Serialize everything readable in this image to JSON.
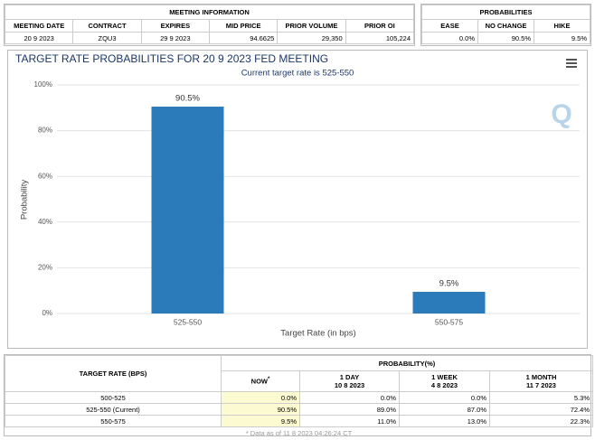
{
  "meeting_info": {
    "title": "MEETING INFORMATION",
    "headers": [
      "MEETING DATE",
      "CONTRACT",
      "EXPIRES",
      "MID PRICE",
      "PRIOR VOLUME",
      "PRIOR OI"
    ],
    "row": [
      "20 9 2023",
      "ZQU3",
      "29 9 2023",
      "94.6625",
      "29,350",
      "105,224"
    ]
  },
  "probabilities": {
    "title": "PROBABILITIES",
    "headers": [
      "EASE",
      "NO CHANGE",
      "HIKE"
    ],
    "row": [
      "0.0%",
      "90.5%",
      "9.5%"
    ]
  },
  "chart_data": {
    "type": "bar",
    "title": "TARGET RATE PROBABILITIES FOR 20 9 2023 FED MEETING",
    "subtitle": "Current target rate is 525-550",
    "x_label": "Target Rate (in bps)",
    "y_label": "Probability",
    "categories": [
      "525-550",
      "550-575"
    ],
    "values": [
      90.5,
      9.5
    ],
    "value_labels": [
      "90.5%",
      "9.5%"
    ],
    "color": "#2b7bba",
    "ylim": [
      0,
      100
    ],
    "yticks": [
      {
        "value": 0,
        "label": "0%"
      },
      {
        "value": 20,
        "label": "20%"
      },
      {
        "value": 40,
        "label": "40%"
      },
      {
        "value": 60,
        "label": "60%"
      },
      {
        "value": 80,
        "label": "80%"
      },
      {
        "value": 100,
        "label": "100%"
      }
    ],
    "grid": true
  },
  "rate_table": {
    "header": "TARGET RATE (BPS)",
    "group_header": "PROBABILITY(%)",
    "columns": [
      {
        "title": "NOW",
        "note": "*"
      },
      {
        "title": "1 DAY",
        "date": "10 8 2023"
      },
      {
        "title": "1 WEEK",
        "date": "4 8 2023"
      },
      {
        "title": "1 MONTH",
        "date": "11 7 2023"
      }
    ],
    "rows": [
      [
        "500-525",
        "0.0%",
        "0.0%",
        "0.0%",
        "5.3%"
      ],
      [
        "525-550 (Current)",
        "90.5%",
        "89.0%",
        "87.0%",
        "72.4%"
      ],
      [
        "550-575",
        "9.5%",
        "11.0%",
        "13.0%",
        "22.3%"
      ]
    ],
    "footer": "* Data as of 11 8 2023 04:26:24 CT"
  }
}
